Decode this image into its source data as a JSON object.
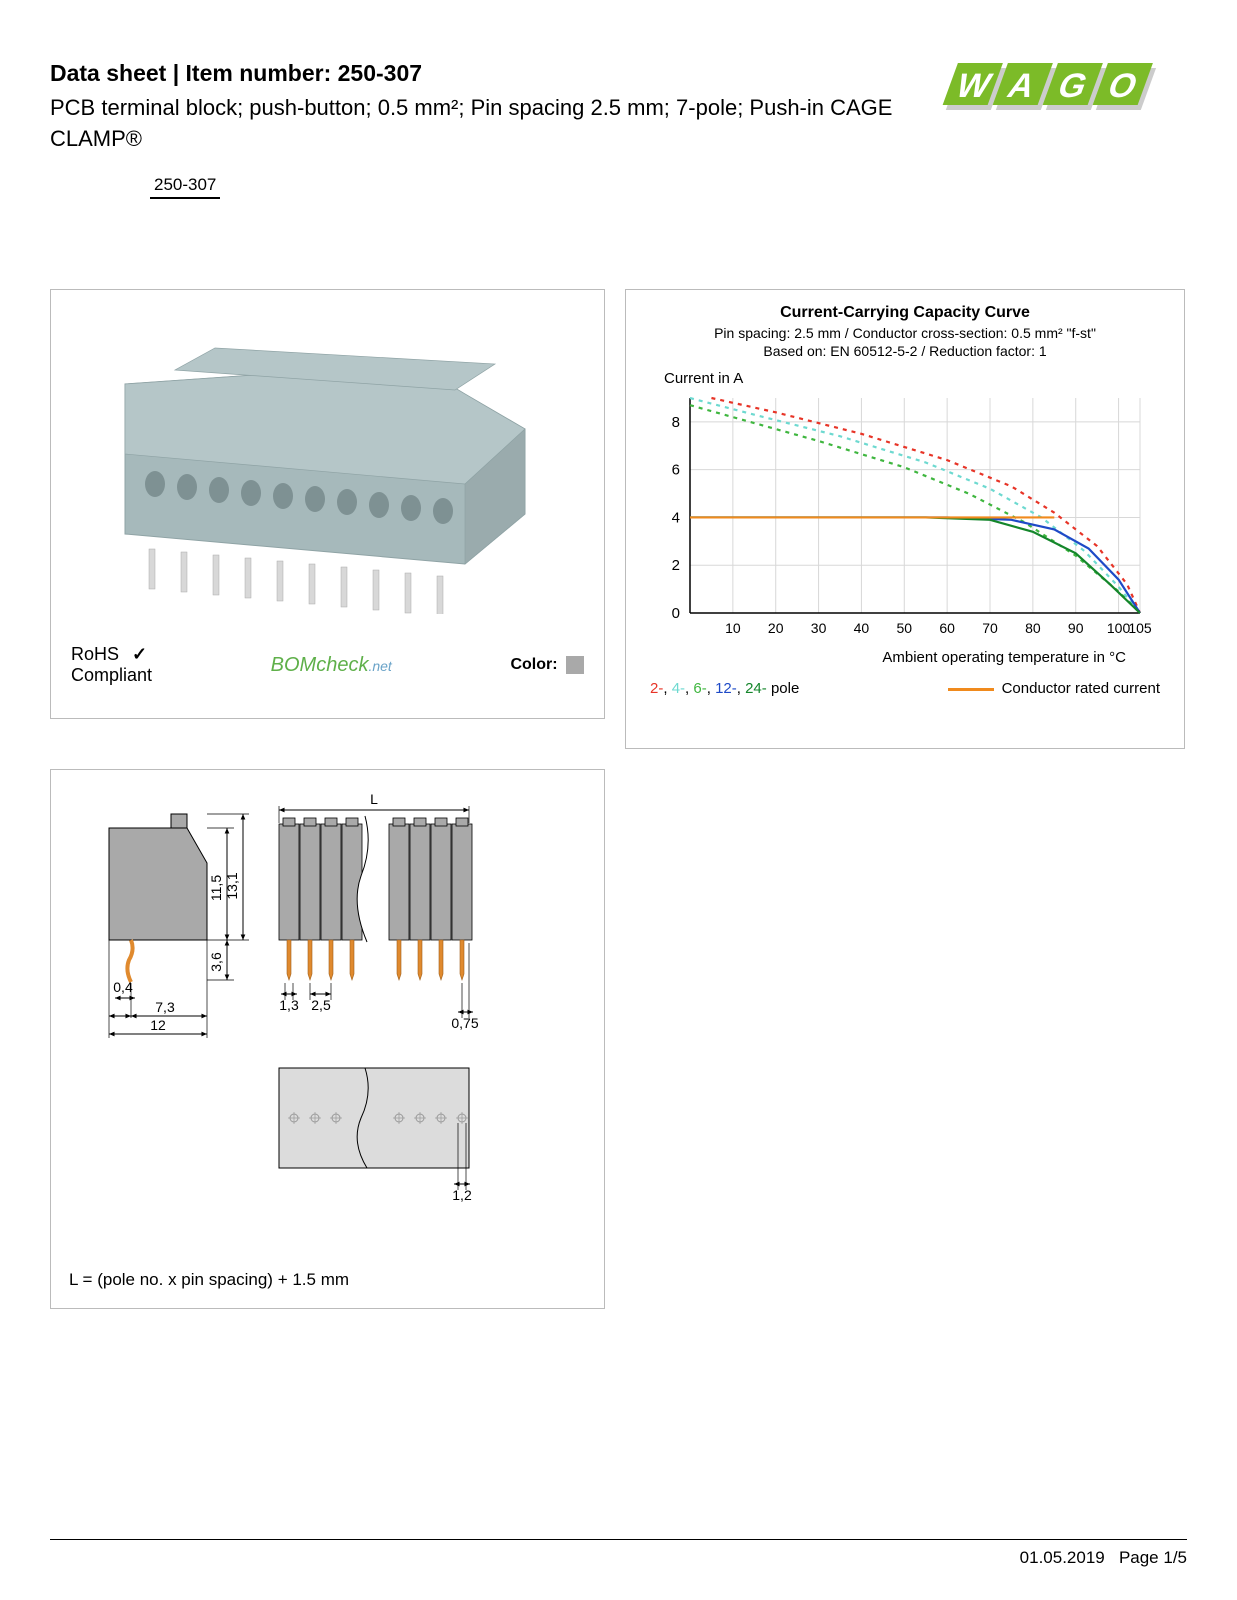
{
  "header": {
    "title": "Data sheet  |  Item number: 250-307",
    "subtitle": "PCB terminal block; push-button; 0.5 mm²; Pin spacing 2.5 mm; 7-pole; Push-in CAGE CLAMP®",
    "item_tag": "250-307"
  },
  "logo": {
    "brand": "WAGO",
    "primary_color": "#7cbb28",
    "shadow_color": "#cccccc"
  },
  "product_panel": {
    "rohs_line1": "RoHS",
    "rohs_line2": "Compliant",
    "bomcheck": "BOMcheck",
    "bomcheck_suffix": ".net",
    "color_label": "Color:",
    "color_swatch": "#a9a9a9",
    "block_color": "#a6b9bb",
    "block_shadow": "#8fa3a5",
    "pin_color": "#d8d8d8"
  },
  "chart": {
    "title": "Current-Carrying Capacity Curve",
    "sub1": "Pin spacing: 2.5 mm / Conductor cross-section: 0.5 mm² \"f-st\"",
    "sub2": "Based on: EN 60512-5-2 / Reduction factor: 1",
    "y_label": "Current in A",
    "x_label": "Ambient operating temperature in °C",
    "y_ticks": [
      0,
      2,
      4,
      6,
      8
    ],
    "y_max": 9,
    "x_ticks": [
      10,
      20,
      30,
      40,
      50,
      60,
      70,
      80,
      90,
      100,
      105
    ],
    "x_max": 105,
    "grid_color": "#d8d8d8",
    "series": {
      "pole2": {
        "color": "#e73427",
        "dashed": true,
        "points": [
          [
            5,
            9
          ],
          [
            20,
            8.4
          ],
          [
            40,
            7.5
          ],
          [
            60,
            6.4
          ],
          [
            75,
            5.3
          ],
          [
            85,
            4.2
          ],
          [
            95,
            2.8
          ],
          [
            102,
            1.2
          ],
          [
            105,
            0
          ]
        ]
      },
      "pole4": {
        "color": "#6dd9d0",
        "dashed": true,
        "points": [
          [
            0,
            9
          ],
          [
            15,
            8.3
          ],
          [
            35,
            7.4
          ],
          [
            55,
            6.3
          ],
          [
            70,
            5.2
          ],
          [
            82,
            4.0
          ],
          [
            92,
            2.6
          ],
          [
            100,
            1.1
          ],
          [
            105,
            0
          ]
        ]
      },
      "pole6": {
        "color": "#3fb63f",
        "dashed": true,
        "points": [
          [
            0,
            8.7
          ],
          [
            12,
            8.1
          ],
          [
            30,
            7.2
          ],
          [
            50,
            6.1
          ],
          [
            65,
            5.0
          ],
          [
            78,
            3.8
          ],
          [
            90,
            2.4
          ],
          [
            100,
            0.9
          ],
          [
            105,
            0
          ]
        ]
      },
      "pole12": {
        "color": "#1e4ac7",
        "dashed": false,
        "points": [
          [
            0,
            4
          ],
          [
            60,
            4
          ],
          [
            75,
            3.9
          ],
          [
            85,
            3.5
          ],
          [
            93,
            2.7
          ],
          [
            100,
            1.4
          ],
          [
            105,
            0
          ]
        ]
      },
      "pole24": {
        "color": "#14862b",
        "dashed": false,
        "points": [
          [
            0,
            4
          ],
          [
            55,
            4
          ],
          [
            70,
            3.9
          ],
          [
            80,
            3.4
          ],
          [
            90,
            2.5
          ],
          [
            98,
            1.2
          ],
          [
            105,
            0
          ]
        ]
      },
      "rated": {
        "color": "#f08a1d",
        "dashed": false,
        "points": [
          [
            0,
            4
          ],
          [
            85,
            4
          ]
        ]
      }
    },
    "legend": {
      "poles": "2-, 4-, 6-, 12-, 24- pole",
      "rated": "Conductor rated current"
    }
  },
  "dimensions": {
    "values": {
      "L": "L",
      "h1": "11,5",
      "h2": "13,1",
      "h3": "3,6",
      "pin_w": "0,4",
      "side_offset": "7,3",
      "width": "12",
      "pin_w2": "1,3",
      "pitch": "2,5",
      "edge": "0,75",
      "hole": "1,2"
    },
    "note": "L = (pole no. x pin spacing) + 1.5 mm",
    "fill_gray": "#a9a9a9",
    "fill_light": "#dcdcdc",
    "pin_orange": "#e08a2e",
    "line_color": "#000000"
  },
  "footer": {
    "date": "01.05.2019",
    "page": "Page 1/5"
  }
}
